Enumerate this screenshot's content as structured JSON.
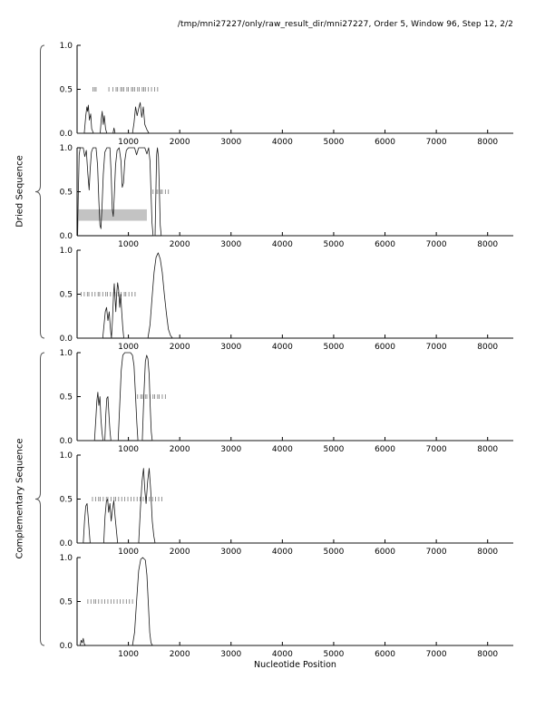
{
  "title": "/tmp/mni27227/only/raw_result_dir/mni27227, Order 5, Window 96, Step 12, 2/2",
  "xlabel": "Nucleotide Position",
  "group_labels": {
    "top": "Dried Sequence",
    "bottom": "Complementary Sequence"
  },
  "colors": {
    "axis": "#000000",
    "curve": "#1a1a1a",
    "rug": "#777777",
    "band": "#c3c3c3",
    "text": "#000000"
  },
  "axis": {
    "x_min": 0,
    "x_max": 8500,
    "x_ticks": [
      1000,
      2000,
      3000,
      4000,
      5000,
      6000,
      7000,
      8000
    ],
    "y_min": 0,
    "y_max": 1,
    "y_ticks": [
      0,
      0.5,
      1
    ],
    "y_tick_labels": [
      "0.0",
      "0.5",
      "1.0"
    ]
  },
  "chart_data": [
    {
      "type": "line",
      "name": "dried-window-1",
      "points": [
        [
          0,
          0
        ],
        [
          140,
          0
        ],
        [
          170,
          0.2
        ],
        [
          190,
          0.3
        ],
        [
          205,
          0.25
        ],
        [
          220,
          0.32
        ],
        [
          240,
          0.15
        ],
        [
          265,
          0.22
        ],
        [
          285,
          0.05
        ],
        [
          320,
          0
        ],
        [
          450,
          0
        ],
        [
          470,
          0.15
        ],
        [
          490,
          0.25
        ],
        [
          510,
          0.1
        ],
        [
          530,
          0.2
        ],
        [
          555,
          0.05
        ],
        [
          580,
          0
        ],
        [
          700,
          0
        ],
        [
          720,
          0.06
        ],
        [
          740,
          0
        ],
        [
          1080,
          0
        ],
        [
          1110,
          0.12
        ],
        [
          1140,
          0.3
        ],
        [
          1170,
          0.2
        ],
        [
          1200,
          0.28
        ],
        [
          1230,
          0.35
        ],
        [
          1260,
          0.18
        ],
        [
          1290,
          0.3
        ],
        [
          1320,
          0.1
        ],
        [
          1360,
          0.04
        ],
        [
          1400,
          0
        ],
        [
          8500,
          0
        ]
      ],
      "rug_y": 0.5,
      "rug_x": [
        310,
        340,
        370,
        620,
        700,
        760,
        790,
        850,
        880,
        910,
        970,
        1000,
        1060,
        1090,
        1120,
        1180,
        1210,
        1270,
        1300,
        1330,
        1390,
        1450,
        1510,
        1570
      ],
      "band": null
    },
    {
      "type": "line",
      "name": "dried-window-2",
      "points": [
        [
          10,
          0
        ],
        [
          25,
          0.5
        ],
        [
          40,
          0.92
        ],
        [
          60,
          1
        ],
        [
          120,
          1
        ],
        [
          150,
          0.9
        ],
        [
          180,
          0.97
        ],
        [
          210,
          0.7
        ],
        [
          235,
          0.52
        ],
        [
          255,
          0.75
        ],
        [
          280,
          0.95
        ],
        [
          310,
          1
        ],
        [
          370,
          1
        ],
        [
          400,
          0.8
        ],
        [
          425,
          0.4
        ],
        [
          445,
          0.12
        ],
        [
          465,
          0.08
        ],
        [
          485,
          0.3
        ],
        [
          510,
          0.7
        ],
        [
          540,
          0.95
        ],
        [
          580,
          1
        ],
        [
          640,
          1
        ],
        [
          665,
          0.7
        ],
        [
          685,
          0.3
        ],
        [
          705,
          0.22
        ],
        [
          725,
          0.45
        ],
        [
          750,
          0.8
        ],
        [
          780,
          0.97
        ],
        [
          820,
          1
        ],
        [
          855,
          0.85
        ],
        [
          880,
          0.55
        ],
        [
          905,
          0.6
        ],
        [
          930,
          0.85
        ],
        [
          960,
          0.97
        ],
        [
          1000,
          1
        ],
        [
          1120,
          1
        ],
        [
          1160,
          0.92
        ],
        [
          1200,
          1
        ],
        [
          1320,
          1
        ],
        [
          1360,
          0.93
        ],
        [
          1395,
          1
        ],
        [
          1420,
          0.85
        ],
        [
          1440,
          0.5
        ],
        [
          1460,
          0.15
        ],
        [
          1480,
          0
        ],
        [
          1520,
          0
        ],
        [
          1535,
          0.5
        ],
        [
          1550,
          0.92
        ],
        [
          1565,
          1
        ],
        [
          1585,
          0.9
        ],
        [
          1605,
          0.5
        ],
        [
          1620,
          0.12
        ],
        [
          1640,
          0
        ],
        [
          8500,
          0
        ]
      ],
      "rug_y": 0.5,
      "rug_x": [
        1480,
        1540,
        1570,
        1630,
        1660,
        1720,
        1780
      ],
      "band": {
        "x1": 30,
        "x2": 1360,
        "y1": 0.17,
        "y2": 0.3
      }
    },
    {
      "type": "line",
      "name": "dried-window-3",
      "points": [
        [
          0,
          0
        ],
        [
          500,
          0
        ],
        [
          525,
          0.15
        ],
        [
          550,
          0.3
        ],
        [
          575,
          0.35
        ],
        [
          600,
          0.2
        ],
        [
          625,
          0.3
        ],
        [
          650,
          0.1
        ],
        [
          670,
          0
        ],
        [
          690,
          0.2
        ],
        [
          710,
          0.5
        ],
        [
          725,
          0.62
        ],
        [
          740,
          0.45
        ],
        [
          755,
          0.3
        ],
        [
          770,
          0.5
        ],
        [
          790,
          0.63
        ],
        [
          810,
          0.55
        ],
        [
          830,
          0.35
        ],
        [
          850,
          0.5
        ],
        [
          870,
          0.3
        ],
        [
          890,
          0.12
        ],
        [
          910,
          0
        ],
        [
          1380,
          0
        ],
        [
          1420,
          0.15
        ],
        [
          1460,
          0.45
        ],
        [
          1500,
          0.75
        ],
        [
          1540,
          0.92
        ],
        [
          1580,
          0.97
        ],
        [
          1620,
          0.9
        ],
        [
          1660,
          0.75
        ],
        [
          1700,
          0.5
        ],
        [
          1740,
          0.28
        ],
        [
          1780,
          0.1
        ],
        [
          1820,
          0.03
        ],
        [
          1860,
          0
        ],
        [
          8500,
          0
        ]
      ],
      "rug_y": 0.5,
      "rug_x": [
        80,
        140,
        200,
        230,
        290,
        350,
        410,
        440,
        500,
        560,
        590,
        650,
        710,
        740,
        800,
        860,
        920,
        950,
        1010,
        1070,
        1130
      ],
      "band": null
    },
    {
      "type": "line",
      "name": "complementary-window-1",
      "points": [
        [
          0,
          0
        ],
        [
          340,
          0
        ],
        [
          365,
          0.25
        ],
        [
          385,
          0.45
        ],
        [
          405,
          0.55
        ],
        [
          425,
          0.4
        ],
        [
          445,
          0.5
        ],
        [
          465,
          0.25
        ],
        [
          485,
          0.1
        ],
        [
          505,
          0
        ],
        [
          540,
          0
        ],
        [
          560,
          0.3
        ],
        [
          580,
          0.48
        ],
        [
          600,
          0.5
        ],
        [
          620,
          0.3
        ],
        [
          640,
          0.12
        ],
        [
          660,
          0
        ],
        [
          800,
          0
        ],
        [
          830,
          0.4
        ],
        [
          860,
          0.8
        ],
        [
          890,
          0.97
        ],
        [
          930,
          1
        ],
        [
          1040,
          1
        ],
        [
          1080,
          0.97
        ],
        [
          1110,
          0.85
        ],
        [
          1140,
          0.5
        ],
        [
          1165,
          0.2
        ],
        [
          1185,
          0
        ],
        [
          1270,
          0
        ],
        [
          1300,
          0.5
        ],
        [
          1330,
          0.9
        ],
        [
          1355,
          0.97
        ],
        [
          1380,
          0.93
        ],
        [
          1405,
          0.75
        ],
        [
          1425,
          0.4
        ],
        [
          1445,
          0.1
        ],
        [
          1465,
          0
        ],
        [
          8500,
          0
        ]
      ],
      "rug_y": 0.5,
      "rug_x": [
        1180,
        1240,
        1270,
        1330,
        1360,
        1420,
        1480,
        1510,
        1570,
        1600,
        1660,
        1720
      ],
      "band": null
    },
    {
      "type": "line",
      "name": "complementary-window-2",
      "points": [
        [
          0,
          0
        ],
        [
          120,
          0
        ],
        [
          145,
          0.25
        ],
        [
          170,
          0.42
        ],
        [
          195,
          0.45
        ],
        [
          215,
          0.3
        ],
        [
          235,
          0.15
        ],
        [
          255,
          0
        ],
        [
          520,
          0
        ],
        [
          545,
          0.3
        ],
        [
          570,
          0.47
        ],
        [
          595,
          0.5
        ],
        [
          615,
          0.35
        ],
        [
          640,
          0.45
        ],
        [
          665,
          0.25
        ],
        [
          690,
          0.38
        ],
        [
          715,
          0.48
        ],
        [
          740,
          0.3
        ],
        [
          765,
          0.15
        ],
        [
          790,
          0
        ],
        [
          1200,
          0
        ],
        [
          1235,
          0.4
        ],
        [
          1265,
          0.7
        ],
        [
          1295,
          0.85
        ],
        [
          1320,
          0.6
        ],
        [
          1345,
          0.45
        ],
        [
          1375,
          0.7
        ],
        [
          1405,
          0.85
        ],
        [
          1435,
          0.6
        ],
        [
          1465,
          0.25
        ],
        [
          1495,
          0.08
        ],
        [
          1520,
          0
        ],
        [
          8500,
          0
        ]
      ],
      "rug_y": 0.5,
      "rug_x": [
        300,
        360,
        420,
        450,
        510,
        570,
        600,
        660,
        720,
        750,
        810,
        870,
        930,
        990,
        1050,
        1110,
        1170,
        1230,
        1290,
        1350,
        1410,
        1470,
        1530,
        1590,
        1650
      ],
      "band": null
    },
    {
      "type": "line",
      "name": "complementary-window-3",
      "points": [
        [
          0,
          0
        ],
        [
          60,
          0
        ],
        [
          80,
          0.06
        ],
        [
          100,
          0.03
        ],
        [
          120,
          0.08
        ],
        [
          140,
          0.02
        ],
        [
          160,
          0
        ],
        [
          1080,
          0
        ],
        [
          1120,
          0.15
        ],
        [
          1160,
          0.5
        ],
        [
          1200,
          0.85
        ],
        [
          1240,
          0.98
        ],
        [
          1280,
          1
        ],
        [
          1330,
          0.97
        ],
        [
          1360,
          0.8
        ],
        [
          1390,
          0.45
        ],
        [
          1415,
          0.15
        ],
        [
          1440,
          0.03
        ],
        [
          1470,
          0
        ],
        [
          8500,
          0
        ]
      ],
      "rug_y": 0.5,
      "rug_x": [
        210,
        270,
        330,
        360,
        420,
        480,
        540,
        600,
        660,
        720,
        780,
        840,
        900,
        960,
        1020,
        1080
      ],
      "band": null
    }
  ]
}
